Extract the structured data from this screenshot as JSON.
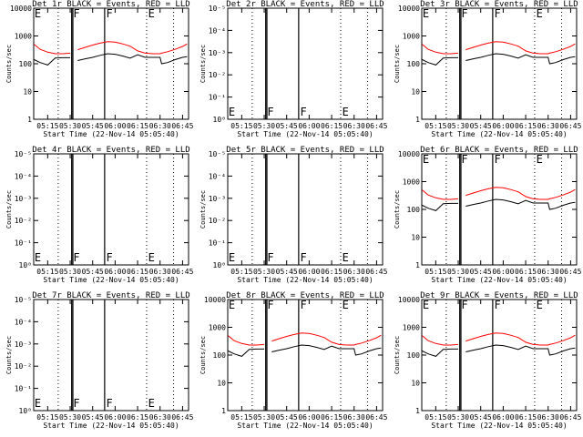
{
  "chart_data": [
    {
      "type": "line",
      "title": "Det 1r BLACK = Events, RED = LLD",
      "xlabel": "Start Time (22-Nov-14 05:05:40)",
      "ylabel": "Counts/sec",
      "y_tick_labels": [
        "1",
        "10",
        "100",
        "1000",
        "10000"
      ],
      "x_tick_labels": [
        "05:15",
        "05:30",
        "05:45",
        "06:00",
        "06:15",
        "06:30",
        "06:45"
      ],
      "markers": [
        "E",
        "F",
        "F",
        "E"
      ],
      "series": [
        {
          "name": "Events",
          "color": "#000000",
          "x": [
            "05:06",
            "05:10",
            "05:15",
            "05:20",
            "05:25",
            "05:30",
            "05:32",
            "05:35",
            "05:40",
            "05:45",
            "05:50",
            "05:55",
            "06:00",
            "06:05",
            "06:10",
            "06:15",
            "06:20",
            "06:25",
            "06:30",
            "06:31",
            "06:35",
            "06:40",
            "06:45",
            "06:48"
          ],
          "values": [
            140,
            110,
            90,
            160,
            165,
            165,
            null,
            130,
            150,
            170,
            200,
            230,
            220,
            190,
            160,
            210,
            170,
            170,
            170,
            100,
            110,
            140,
            170,
            180
          ]
        },
        {
          "name": "LLD",
          "color": "#ff0000",
          "x": [
            "05:06",
            "05:10",
            "05:15",
            "05:20",
            "05:25",
            "05:30",
            "05:32",
            "05:35",
            "05:40",
            "05:45",
            "05:50",
            "05:55",
            "06:00",
            "06:05",
            "06:10",
            "06:15",
            "06:20",
            "06:25",
            "06:30",
            "06:31",
            "06:35",
            "06:40",
            "06:45",
            "06:48"
          ],
          "values": [
            500,
            330,
            260,
            230,
            230,
            240,
            null,
            320,
            390,
            470,
            550,
            620,
            600,
            520,
            430,
            290,
            240,
            230,
            230,
            240,
            270,
            330,
            420,
            520
          ]
        }
      ]
    },
    {
      "type": "line",
      "title": "Det 2r BLACK = Events, RED = LLD",
      "xlabel": "Start Time (22-Nov-14 05:05:40)",
      "ylabel": "Counts/sec",
      "y_tick_labels": [
        "10⁰",
        "10⁻¹",
        "10⁻²",
        "10⁻³",
        "10⁻⁴",
        "10⁻⁵"
      ],
      "x_tick_labels": [
        "05:15",
        "05:30",
        "05:45",
        "06:00",
        "06:15",
        "06:30",
        "06:45"
      ],
      "markers": [
        "E",
        "F",
        "F",
        "E"
      ],
      "series": []
    },
    {
      "type": "line",
      "title": "Det 3r BLACK = Events, RED = LLD",
      "xlabel": "Start Time (22-Nov-14 05:05:40)",
      "ylabel": "Counts/sec",
      "y_tick_labels": [
        "1",
        "10",
        "100",
        "1000",
        "10000"
      ],
      "x_tick_labels": [
        "05:15",
        "05:30",
        "05:45",
        "06:00",
        "06:15",
        "06:30",
        "06:45"
      ],
      "markers": [
        "E",
        "F",
        "F",
        "E"
      ],
      "series": [
        {
          "name": "Events",
          "color": "#000000",
          "x": [
            "05:06",
            "05:10",
            "05:15",
            "05:20",
            "05:25",
            "05:30",
            "05:32",
            "05:35",
            "05:40",
            "05:45",
            "05:50",
            "05:55",
            "06:00",
            "06:05",
            "06:10",
            "06:15",
            "06:20",
            "06:25",
            "06:30",
            "06:31",
            "06:35",
            "06:40",
            "06:45",
            "06:48"
          ],
          "values": [
            140,
            110,
            90,
            160,
            165,
            165,
            null,
            130,
            150,
            170,
            200,
            230,
            220,
            190,
            160,
            210,
            170,
            170,
            170,
            100,
            110,
            140,
            170,
            180
          ]
        },
        {
          "name": "LLD",
          "color": "#ff0000",
          "x": [
            "05:06",
            "05:10",
            "05:15",
            "05:20",
            "05:25",
            "05:30",
            "05:32",
            "05:35",
            "05:40",
            "05:45",
            "05:50",
            "05:55",
            "06:00",
            "06:05",
            "06:10",
            "06:15",
            "06:20",
            "06:25",
            "06:30",
            "06:31",
            "06:35",
            "06:40",
            "06:45",
            "06:48"
          ],
          "values": [
            500,
            330,
            260,
            230,
            230,
            240,
            null,
            320,
            390,
            470,
            550,
            620,
            600,
            520,
            430,
            290,
            240,
            230,
            230,
            240,
            270,
            330,
            420,
            520
          ]
        }
      ]
    },
    {
      "type": "line",
      "title": "Det 4r BLACK = Events, RED = LLD",
      "xlabel": "Start Time (22-Nov-14 05:05:40)",
      "ylabel": "Counts/sec",
      "y_tick_labels": [
        "10⁰",
        "10⁻¹",
        "10⁻²",
        "10⁻³",
        "10⁻⁴",
        "10⁻⁵"
      ],
      "x_tick_labels": [
        "05:15",
        "05:30",
        "05:45",
        "06:00",
        "06:15",
        "06:30",
        "06:45"
      ],
      "markers": [
        "E",
        "F",
        "F",
        "E"
      ],
      "series": []
    },
    {
      "type": "line",
      "title": "Det 5r BLACK = Events, RED = LLD",
      "xlabel": "Start Time (22-Nov-14 05:05:40)",
      "ylabel": "Counts/sec",
      "y_tick_labels": [
        "10⁰",
        "10⁻¹",
        "10⁻²",
        "10⁻³",
        "10⁻⁴",
        "10⁻⁵"
      ],
      "x_tick_labels": [
        "05:15",
        "05:30",
        "05:45",
        "06:00",
        "06:15",
        "06:30",
        "06:45"
      ],
      "markers": [
        "E",
        "F",
        "F",
        "E"
      ],
      "series": []
    },
    {
      "type": "line",
      "title": "Det 6r BLACK = Events, RED = LLD",
      "xlabel": "Start Time (22-Nov-14 05:05:40)",
      "ylabel": "Counts/sec",
      "y_tick_labels": [
        "1",
        "10",
        "100",
        "1000",
        "10000"
      ],
      "x_tick_labels": [
        "05:15",
        "05:30",
        "05:45",
        "06:00",
        "06:15",
        "06:30",
        "06:45"
      ],
      "markers": [
        "E",
        "F",
        "F",
        "E"
      ],
      "series": [
        {
          "name": "Events",
          "color": "#000000",
          "x": [
            "05:06",
            "05:10",
            "05:15",
            "05:20",
            "05:25",
            "05:30",
            "05:32",
            "05:35",
            "05:40",
            "05:45",
            "05:50",
            "05:55",
            "06:00",
            "06:05",
            "06:10",
            "06:15",
            "06:20",
            "06:25",
            "06:30",
            "06:31",
            "06:35",
            "06:40",
            "06:45",
            "06:48"
          ],
          "values": [
            140,
            110,
            90,
            160,
            165,
            165,
            null,
            130,
            150,
            170,
            200,
            230,
            220,
            190,
            160,
            210,
            170,
            170,
            170,
            100,
            110,
            140,
            170,
            180
          ]
        },
        {
          "name": "LLD",
          "color": "#ff0000",
          "x": [
            "05:06",
            "05:10",
            "05:15",
            "05:20",
            "05:25",
            "05:30",
            "05:32",
            "05:35",
            "05:40",
            "05:45",
            "05:50",
            "05:55",
            "06:00",
            "06:05",
            "06:10",
            "06:15",
            "06:20",
            "06:25",
            "06:30",
            "06:31",
            "06:35",
            "06:40",
            "06:45",
            "06:48"
          ],
          "values": [
            500,
            330,
            260,
            230,
            230,
            240,
            null,
            320,
            390,
            470,
            550,
            620,
            600,
            520,
            430,
            290,
            240,
            230,
            230,
            240,
            270,
            330,
            420,
            520
          ]
        }
      ]
    },
    {
      "type": "line",
      "title": "Det 7r BLACK = Events, RED = LLD",
      "xlabel": "Start Time (22-Nov-14 05:05:40)",
      "ylabel": "Counts/sec",
      "y_tick_labels": [
        "10⁰",
        "10⁻¹",
        "10⁻²",
        "10⁻³",
        "10⁻⁴",
        "10⁻⁵"
      ],
      "x_tick_labels": [
        "05:15",
        "05:30",
        "05:45",
        "06:00",
        "06:15",
        "06:30",
        "06:45"
      ],
      "markers": [
        "E",
        "F",
        "F",
        "E"
      ],
      "series": []
    },
    {
      "type": "line",
      "title": "Det 8r BLACK = Events, RED = LLD",
      "xlabel": "Start Time (22-Nov-14 05:05:40)",
      "ylabel": "Counts/sec",
      "y_tick_labels": [
        "1",
        "10",
        "100",
        "1000",
        "10000"
      ],
      "x_tick_labels": [
        "05:15",
        "05:30",
        "05:45",
        "06:00",
        "06:15",
        "06:30",
        "06:45"
      ],
      "markers": [
        "E",
        "F",
        "F",
        "E"
      ],
      "series": [
        {
          "name": "Events",
          "color": "#000000",
          "x": [
            "05:06",
            "05:10",
            "05:15",
            "05:20",
            "05:25",
            "05:30",
            "05:32",
            "05:35",
            "05:40",
            "05:45",
            "05:50",
            "05:55",
            "06:00",
            "06:05",
            "06:10",
            "06:15",
            "06:20",
            "06:25",
            "06:30",
            "06:31",
            "06:35",
            "06:40",
            "06:45",
            "06:48"
          ],
          "values": [
            140,
            110,
            90,
            160,
            165,
            165,
            null,
            130,
            150,
            170,
            200,
            230,
            220,
            190,
            160,
            210,
            170,
            170,
            170,
            100,
            110,
            140,
            170,
            180
          ]
        },
        {
          "name": "LLD",
          "color": "#ff0000",
          "x": [
            "05:06",
            "05:10",
            "05:15",
            "05:20",
            "05:25",
            "05:30",
            "05:32",
            "05:35",
            "05:40",
            "05:45",
            "05:50",
            "05:55",
            "06:00",
            "06:05",
            "06:10",
            "06:15",
            "06:20",
            "06:25",
            "06:30",
            "06:31",
            "06:35",
            "06:40",
            "06:45",
            "06:48"
          ],
          "values": [
            500,
            330,
            260,
            230,
            230,
            240,
            null,
            320,
            390,
            470,
            550,
            620,
            600,
            520,
            430,
            290,
            240,
            230,
            230,
            240,
            270,
            330,
            420,
            520
          ]
        }
      ]
    },
    {
      "type": "line",
      "title": "Det 9r BLACK = Events, RED = LLD",
      "xlabel": "Start Time (22-Nov-14 05:05:40)",
      "ylabel": "Counts/sec",
      "y_tick_labels": [
        "1",
        "10",
        "100",
        "1000",
        "10000"
      ],
      "x_tick_labels": [
        "05:15",
        "05:30",
        "05:45",
        "06:00",
        "06:15",
        "06:30",
        "06:45"
      ],
      "markers": [
        "E",
        "F",
        "F",
        "E"
      ],
      "series": [
        {
          "name": "Events",
          "color": "#000000",
          "x": [
            "05:06",
            "05:10",
            "05:15",
            "05:20",
            "05:25",
            "05:30",
            "05:32",
            "05:35",
            "05:40",
            "05:45",
            "05:50",
            "05:55",
            "06:00",
            "06:05",
            "06:10",
            "06:15",
            "06:20",
            "06:25",
            "06:30",
            "06:31",
            "06:35",
            "06:40",
            "06:45",
            "06:48"
          ],
          "values": [
            140,
            110,
            90,
            160,
            165,
            165,
            null,
            130,
            150,
            170,
            200,
            230,
            220,
            190,
            160,
            210,
            170,
            170,
            170,
            100,
            110,
            140,
            170,
            180
          ]
        },
        {
          "name": "LLD",
          "color": "#ff0000",
          "x": [
            "05:06",
            "05:10",
            "05:15",
            "05:20",
            "05:25",
            "05:30",
            "05:32",
            "05:35",
            "05:40",
            "05:45",
            "05:50",
            "05:55",
            "06:00",
            "06:05",
            "06:10",
            "06:15",
            "06:20",
            "06:25",
            "06:30",
            "06:31",
            "06:35",
            "06:40",
            "06:45",
            "06:48"
          ],
          "values": [
            500,
            330,
            260,
            230,
            230,
            240,
            null,
            320,
            390,
            470,
            550,
            620,
            600,
            520,
            430,
            290,
            240,
            230,
            230,
            240,
            270,
            330,
            420,
            520
          ]
        }
      ]
    }
  ]
}
